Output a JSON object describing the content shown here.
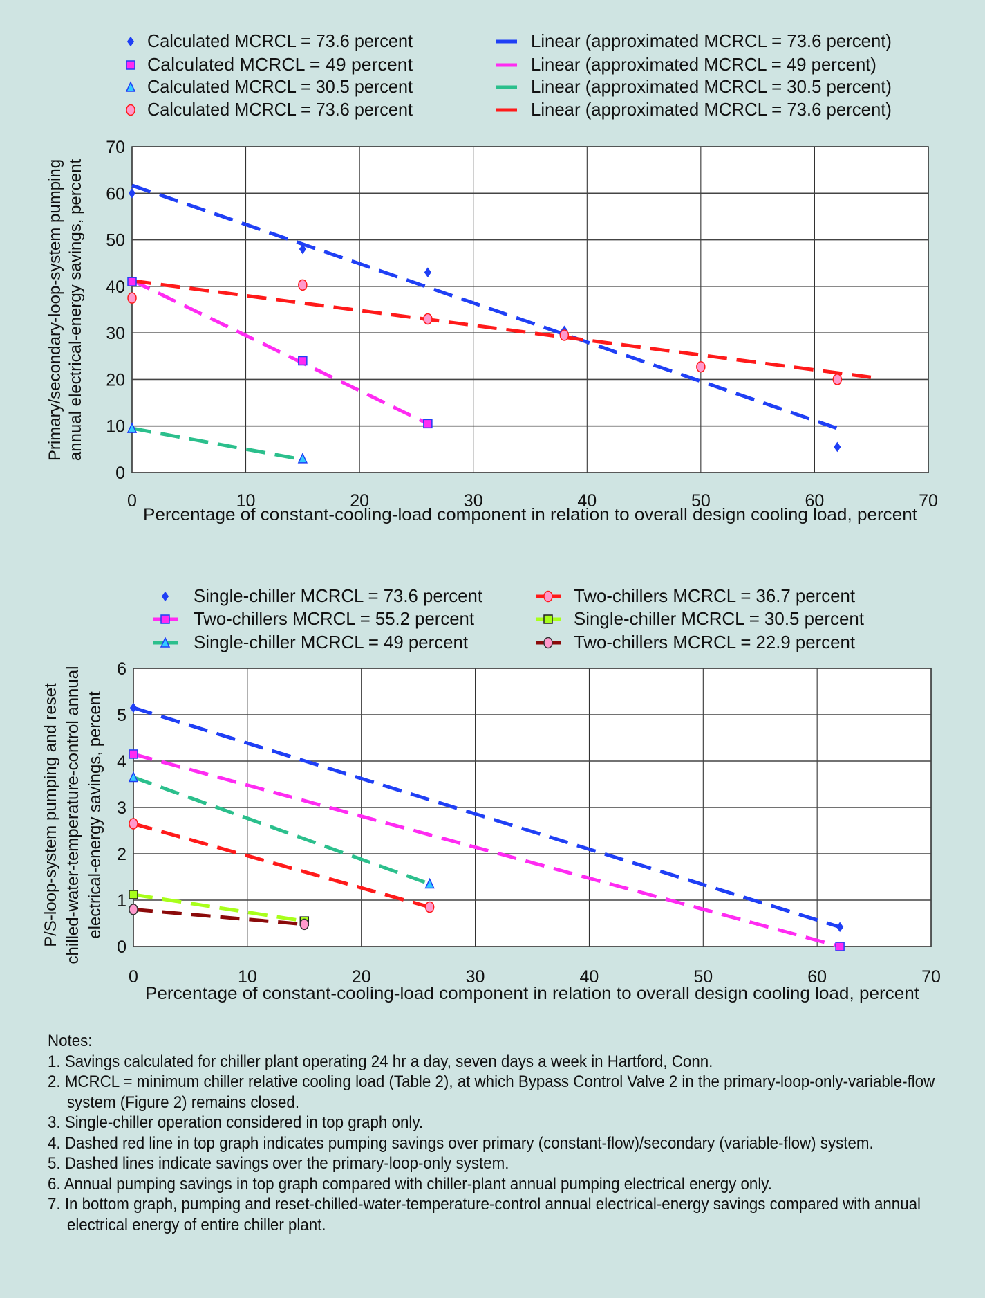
{
  "colors": {
    "background": "#cfe4e2",
    "blue": "#1f3ff5",
    "magenta": "#ff2bf2",
    "green": "#2bbf8c",
    "red": "#ff1a1a",
    "yellowgreen": "#a8ff1a",
    "darkred": "#8b0a0a"
  },
  "chart_data": [
    {
      "type": "scatter",
      "title": "",
      "xlabel": "Percentage of constant-cooling-load component in relation to overall design cooling load, percent",
      "ylabel_lines": [
        "Primary/secondary-loop-system pumping",
        "annual electrical-energy savings, percent"
      ],
      "xlim": [
        0,
        70
      ],
      "ylim": [
        0,
        70
      ],
      "xticks": [
        "0",
        "10",
        "20",
        "30",
        "40",
        "50",
        "60",
        "70"
      ],
      "yticks": [
        "0",
        "10",
        "20",
        "30",
        "40",
        "50",
        "60",
        "70"
      ],
      "grid": true,
      "legend_position": "top",
      "series": [
        {
          "name": "Calculated MCRCL = 73.6 percent",
          "color": "#1f3ff5",
          "marker": "diamond",
          "points": [
            [
              0,
              60
            ],
            [
              15,
              48
            ],
            [
              26,
              43
            ],
            [
              38,
              30.5
            ],
            [
              62,
              5.5
            ]
          ]
        },
        {
          "name": "Calculated MCRCL = 49 percent",
          "color": "#ff2bf2",
          "marker": "square",
          "points": [
            [
              0,
              41
            ],
            [
              15,
              24
            ],
            [
              26,
              10.5
            ]
          ]
        },
        {
          "name": "Calculated MCRCL = 30.5 percent",
          "color": "#2bbf8c",
          "marker": "triangle",
          "points": [
            [
              0,
              9.5
            ],
            [
              15,
              3
            ]
          ]
        },
        {
          "name": "Calculated MCRCL = 73.6 percent",
          "color": "#ff1a1a",
          "marker": "circle",
          "points": [
            [
              0,
              37.5
            ],
            [
              15,
              40.3
            ],
            [
              26,
              33
            ],
            [
              38,
              29.5
            ],
            [
              50,
              22.7
            ],
            [
              62,
              20
            ]
          ]
        }
      ],
      "trendlines": [
        {
          "name": "Linear (approximated MCRCL = 73.6 percent)",
          "color": "#1f3ff5",
          "points": [
            [
              0,
              61.7
            ],
            [
              62,
              9.5
            ]
          ]
        },
        {
          "name": "Linear (approximated MCRCL = 49 percent)",
          "color": "#ff2bf2",
          "points": [
            [
              0,
              41.3
            ],
            [
              26,
              10.5
            ]
          ]
        },
        {
          "name": "Linear (approximated MCRCL = 30.5 percent)",
          "color": "#2bbf8c",
          "points": [
            [
              0,
              9.5
            ],
            [
              15,
              2.8
            ]
          ]
        },
        {
          "name": "Linear (approximated MCRCL = 73.6 percent)",
          "color": "#ff1a1a",
          "points": [
            [
              0,
              41.2
            ],
            [
              65.5,
              20.3
            ]
          ]
        }
      ]
    },
    {
      "type": "line",
      "title": "",
      "xlabel": "Percentage of constant-cooling-load component in relation to overall design cooling load, percent",
      "ylabel_lines": [
        "P/S-loop-system pumping and reset",
        "chilled-water-temperature-control annual",
        "electrical-energy savings, percent"
      ],
      "xlim": [
        0,
        70
      ],
      "ylim": [
        0,
        6
      ],
      "xticks": [
        "0",
        "10",
        "20",
        "30",
        "40",
        "50",
        "60",
        "70"
      ],
      "yticks": [
        "0",
        "1",
        "2",
        "3",
        "4",
        "5",
        "6"
      ],
      "grid": true,
      "legend_position": "top",
      "series": [
        {
          "name": "Single-chiller MCRCL = 73.6 percent",
          "color": "#1f3ff5",
          "marker": "diamond",
          "points": [
            [
              0,
              5.15
            ],
            [
              62,
              0.42
            ]
          ]
        },
        {
          "name": "Two-chillers MCRCL = 55.2 percent",
          "color": "#ff2bf2",
          "marker": "square",
          "points": [
            [
              0,
              4.15
            ],
            [
              62,
              0
            ]
          ]
        },
        {
          "name": "Single-chiller MCRCL = 49 percent",
          "color": "#2bbf8c",
          "marker": "triangle",
          "points": [
            [
              0,
              3.65
            ],
            [
              26,
              1.35
            ]
          ]
        },
        {
          "name": "Two-chillers MCRCL = 36.7 percent",
          "color": "#ff1a1a",
          "marker": "circle",
          "points": [
            [
              0,
              2.65
            ],
            [
              26,
              0.85
            ]
          ]
        },
        {
          "name": "Single-chiller MCRCL = 30.5 percent",
          "color": "#a8ff1a",
          "marker": "square-dark",
          "points": [
            [
              0,
              1.12
            ],
            [
              15,
              0.55
            ]
          ]
        },
        {
          "name": "Two-chillers MCRCL = 22.9 percent",
          "color": "#8b0a0a",
          "marker": "circle-dark",
          "points": [
            [
              0,
              0.8
            ],
            [
              15,
              0.48
            ]
          ]
        }
      ]
    }
  ],
  "notes": {
    "heading": "Notes:",
    "items": [
      "1. Savings calculated for chiller plant operating 24 hr a day, seven days a week in Hartford, Conn.",
      "2. MCRCL = minimum chiller relative cooling load (Table 2), at which Bypass Control Valve 2 in the primary-loop-only-variable-flow system (Figure 2) remains closed.",
      "3. Single-chiller operation considered in top graph only.",
      "4. Dashed red line in top graph indicates pumping savings over primary (constant-flow)/secondary (variable-flow) system.",
      "5. Dashed lines indicate savings over the primary-loop-only system.",
      "6. Annual pumping savings in top graph compared with chiller-plant annual pumping electrical energy only.",
      "7. In bottom graph, pumping and reset-chilled-water-temperature-control annual electrical-energy savings compared with annual electrical energy of entire chiller plant."
    ]
  }
}
